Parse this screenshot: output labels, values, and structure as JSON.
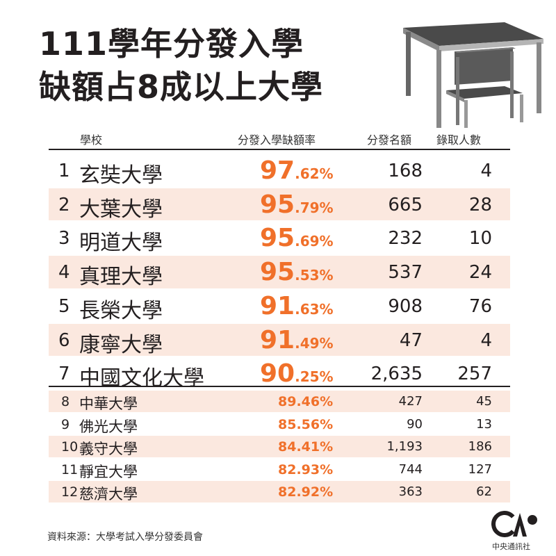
{
  "title": {
    "line1": "111學年分發入學",
    "line2": "缺額占8成以上大學"
  },
  "source": "資料來源：大學考試入學分發委員會",
  "logo": {
    "sub": "中央通訊社"
  },
  "colors": {
    "accent": "#f0702a",
    "shade": "#fbe8df",
    "text": "#231f20"
  },
  "chart_data": {
    "type": "table",
    "columns": [
      "學校",
      "分發入學缺額率",
      "分發名額",
      "錄取人數"
    ],
    "rows": [
      {
        "rank": "1",
        "school": "玄奘大學",
        "rate": "97.62%",
        "rate_int": "97",
        "rate_dec": ".62%",
        "quota": "168",
        "admitted": "4"
      },
      {
        "rank": "2",
        "school": "大葉大學",
        "rate": "95.79%",
        "rate_int": "95",
        "rate_dec": ".79%",
        "quota": "665",
        "admitted": "28"
      },
      {
        "rank": "3",
        "school": "明道大學",
        "rate": "95.69%",
        "rate_int": "95",
        "rate_dec": ".69%",
        "quota": "232",
        "admitted": "10"
      },
      {
        "rank": "4",
        "school": "真理大學",
        "rate": "95.53%",
        "rate_int": "95",
        "rate_dec": ".53%",
        "quota": "537",
        "admitted": "24"
      },
      {
        "rank": "5",
        "school": "長榮大學",
        "rate": "91.63%",
        "rate_int": "91",
        "rate_dec": ".63%",
        "quota": "908",
        "admitted": "76"
      },
      {
        "rank": "6",
        "school": "康寧大學",
        "rate": "91.49%",
        "rate_int": "91",
        "rate_dec": ".49%",
        "quota": "47",
        "admitted": "4"
      },
      {
        "rank": "7",
        "school": "中國文化大學",
        "rate": "90.25%",
        "rate_int": "90",
        "rate_dec": ".25%",
        "quota": "2,635",
        "admitted": "257"
      },
      {
        "rank": "8",
        "school": "中華大學",
        "rate": "89.46%",
        "quota": "427",
        "admitted": "45"
      },
      {
        "rank": "9",
        "school": "佛光大學",
        "rate": "85.56%",
        "quota": "90",
        "admitted": "13"
      },
      {
        "rank": "10",
        "school": "義守大學",
        "rate": "84.41%",
        "quota": "1,193",
        "admitted": "186"
      },
      {
        "rank": "11",
        "school": "靜宜大學",
        "rate": "82.93%",
        "quota": "744",
        "admitted": "127"
      },
      {
        "rank": "12",
        "school": "慈濟大學",
        "rate": "82.92%",
        "quota": "363",
        "admitted": "62"
      }
    ]
  }
}
